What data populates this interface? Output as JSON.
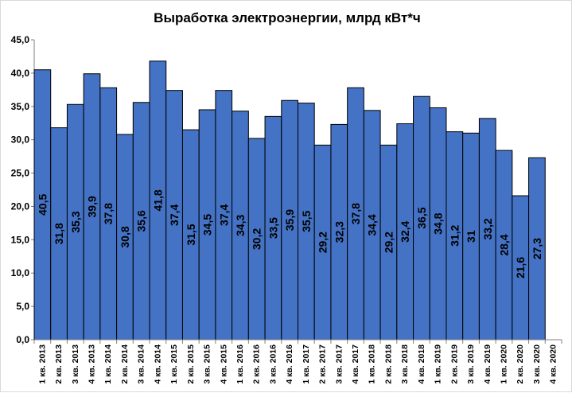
{
  "chart_data": {
    "type": "bar",
    "title": "Выработка электроэнергии, млрд кВт*ч",
    "xlabel": "",
    "ylabel": "",
    "ylim": [
      0,
      45
    ],
    "yticks": [
      "0,0",
      "5,0",
      "10,0",
      "15,0",
      "20,0",
      "25,0",
      "30,0",
      "35,0",
      "40,0",
      "45,0"
    ],
    "grid": false,
    "legend": "none",
    "bar_color": "#4472C4",
    "bar_edge_color": "#000000",
    "categories": [
      "1 кв. 2013",
      "2 кв. 2013",
      "3 кв. 2013",
      "4 кв. 2013",
      "1 кв. 2014",
      "2 кв. 2014",
      "3 кв. 2014",
      "4 кв. 2014",
      "1 кв. 2015",
      "2 кв. 2015",
      "3 кв. 2015",
      "4 кв. 2015",
      "1 кв. 2016",
      "2 кв. 2016",
      "3 кв. 2016",
      "4 кв. 2016",
      "1 кв. 2017",
      "2 кв. 2017",
      "3 кв. 2017",
      "4 кв. 2017",
      "1 кв. 2018",
      "2 кв. 2018",
      "3 кв. 2018",
      "4 кв. 2018",
      "1 кв. 2019",
      "2 кв. 2019",
      "3 кв. 2019",
      "4 кв. 2019",
      "1 кв. 2020",
      "2 кв. 2020",
      "3 кв. 2020",
      "4 кв. 2020"
    ],
    "values": [
      40.5,
      31.8,
      35.3,
      39.9,
      37.8,
      30.8,
      35.6,
      41.8,
      37.4,
      31.5,
      34.5,
      37.4,
      34.3,
      30.2,
      33.5,
      35.9,
      35.5,
      29.2,
      32.3,
      37.8,
      34.4,
      29.2,
      32.4,
      36.5,
      34.8,
      31.2,
      31.0,
      33.2,
      28.4,
      21.6,
      27.3,
      null
    ],
    "data_labels": [
      "40,5",
      "31,8",
      "35,3",
      "39,9",
      "37,8",
      "30,8",
      "35,6",
      "41,8",
      "37,4",
      "31,5",
      "34,5",
      "37,4",
      "34,3",
      "30,2",
      "33,5",
      "35,9",
      "35,5",
      "29,2",
      "32,3",
      "37,8",
      "34,4",
      "29,2",
      "32,4",
      "36,5",
      "34,8",
      "31,2",
      "31",
      "33,2",
      "28,4",
      "21,6",
      "27,3",
      ""
    ]
  }
}
